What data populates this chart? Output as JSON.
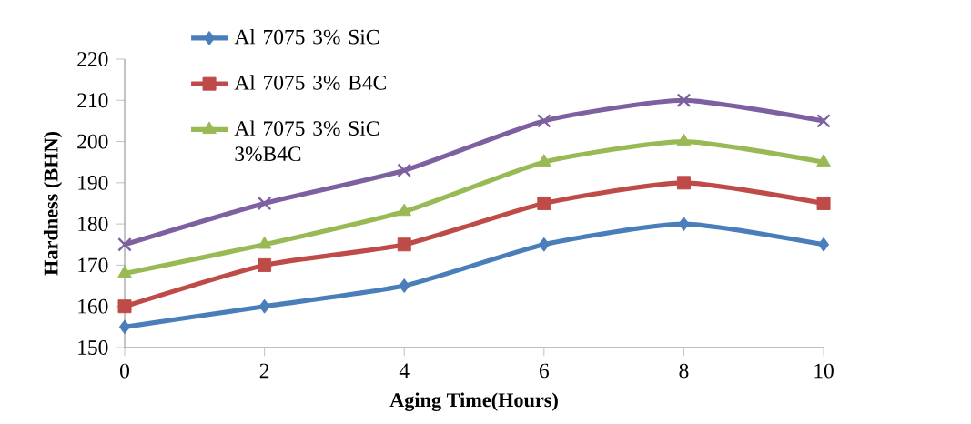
{
  "chart_data": {
    "type": "line",
    "xlabel": "Aging Time(Hours)",
    "ylabel": "Hardness (BHN)",
    "x": [
      0,
      2,
      4,
      6,
      8,
      10
    ],
    "xlim": [
      0,
      10
    ],
    "xticks": [
      0,
      2,
      4,
      6,
      8,
      10
    ],
    "ylim": [
      150,
      220
    ],
    "yticks": [
      150,
      160,
      170,
      180,
      190,
      200,
      210,
      220
    ],
    "legend": "top left",
    "grid": false,
    "line_style": "solid",
    "series": [
      {
        "name": "Al 7075 3% SiC",
        "color": "#4a7ebb",
        "marker": "diamond",
        "values": [
          155,
          160,
          165,
          175,
          180,
          175
        ]
      },
      {
        "name": "Al 7075 3% B4C",
        "color": "#be4b48",
        "marker": "square",
        "values": [
          160,
          170,
          175,
          185,
          190,
          185
        ]
      },
      {
        "name": "Al 7075 3% SiC 3%B4C",
        "color": "#98b954",
        "marker": "triangle",
        "values": [
          168,
          175,
          183,
          195,
          200,
          195
        ]
      },
      {
        "color": "#7d60a0",
        "marker": "cross",
        "values": [
          175,
          185,
          193,
          205,
          210,
          205
        ]
      }
    ]
  }
}
